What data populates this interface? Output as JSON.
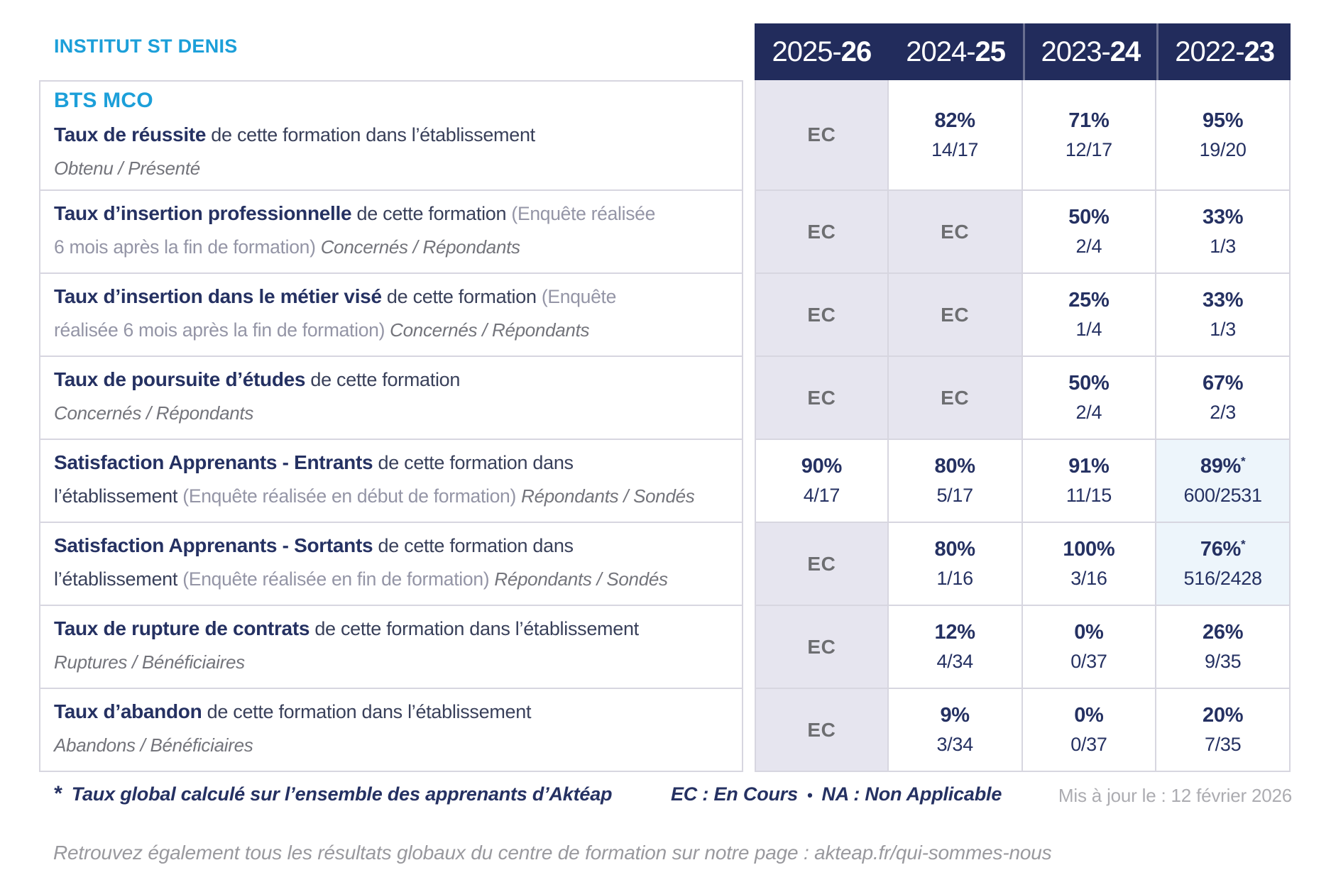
{
  "brand": "INSTITUT ST DENIS",
  "header": {
    "years": [
      {
        "pre": "2025-",
        "bold": "26",
        "divider": false
      },
      {
        "pre": "2024-",
        "bold": "25",
        "divider": false
      },
      {
        "pre": "2023-",
        "bold": "24",
        "divider": true
      },
      {
        "pre": "2022-",
        "bold": "23",
        "divider": true
      }
    ]
  },
  "table": {
    "rows": [
      {
        "lines": [
          [
            {
              "t": "BTS MCO",
              "s": "title"
            }
          ],
          [
            {
              "t": "Taux de réussite",
              "s": "bold"
            },
            {
              "t": " de cette formation dans l’établissement",
              "s": "normal"
            }
          ],
          [
            {
              "t": "Obtenu / Présenté",
              "s": "italic"
            }
          ]
        ],
        "values": [
          {
            "type": "ec",
            "text": "EC"
          },
          {
            "type": "pct",
            "pct": "82%",
            "frac": "14/17"
          },
          {
            "type": "pct",
            "pct": "71%",
            "frac": "12/17"
          },
          {
            "type": "pct",
            "pct": "95%",
            "frac": "19/20"
          }
        ]
      },
      {
        "lines": [
          [
            {
              "t": "Taux d’insertion professionnelle",
              "s": "bold"
            },
            {
              "t": " de cette formation ",
              "s": "normal"
            },
            {
              "t": "(Enquête réalisée",
              "s": "paren"
            }
          ],
          [
            {
              "t": "6 mois après la fin de formation) ",
              "s": "paren"
            },
            {
              "t": "Concernés / Répondants",
              "s": "italic"
            }
          ]
        ],
        "values": [
          {
            "type": "ec",
            "text": "EC"
          },
          {
            "type": "ec",
            "text": "EC"
          },
          {
            "type": "pct",
            "pct": "50%",
            "frac": "2/4"
          },
          {
            "type": "pct",
            "pct": "33%",
            "frac": "1/3"
          }
        ]
      },
      {
        "lines": [
          [
            {
              "t": "Taux d’insertion dans le métier visé",
              "s": "bold"
            },
            {
              "t": " de cette formation ",
              "s": "normal"
            },
            {
              "t": "(Enquête",
              "s": "paren"
            }
          ],
          [
            {
              "t": "réalisée 6 mois après la fin de formation) ",
              "s": "paren"
            },
            {
              "t": "Concernés / Répondants",
              "s": "italic"
            }
          ]
        ],
        "values": [
          {
            "type": "ec",
            "text": "EC"
          },
          {
            "type": "ec",
            "text": "EC"
          },
          {
            "type": "pct",
            "pct": "25%",
            "frac": "1/4"
          },
          {
            "type": "pct",
            "pct": "33%",
            "frac": "1/3"
          }
        ]
      },
      {
        "lines": [
          [
            {
              "t": "Taux de poursuite d’études",
              "s": "bold"
            },
            {
              "t": " de cette formation",
              "s": "normal"
            }
          ],
          [
            {
              "t": "Concernés / Répondants",
              "s": "italic"
            }
          ]
        ],
        "values": [
          {
            "type": "ec",
            "text": "EC"
          },
          {
            "type": "ec",
            "text": "EC"
          },
          {
            "type": "pct",
            "pct": "50%",
            "frac": "2/4"
          },
          {
            "type": "pct",
            "pct": "67%",
            "frac": "2/3"
          }
        ]
      },
      {
        "lines": [
          [
            {
              "t": "Satisfaction Apprenants - Entrants",
              "s": "bold"
            },
            {
              "t": " de cette formation dans",
              "s": "normal"
            }
          ],
          [
            {
              "t": "l’établissement ",
              "s": "normal"
            },
            {
              "t": "(Enquête réalisée en début de formation) ",
              "s": "paren"
            },
            {
              "t": "Répondants / Sondés",
              "s": "italic"
            }
          ]
        ],
        "values": [
          {
            "type": "pct",
            "pct": "90%",
            "frac": "4/17"
          },
          {
            "type": "pct",
            "pct": "80%",
            "frac": "5/17"
          },
          {
            "type": "pct",
            "pct": "91%",
            "frac": "11/15"
          },
          {
            "type": "pct",
            "pct": "89%",
            "frac": "600/2531",
            "star": "*",
            "highlight": true
          }
        ]
      },
      {
        "lines": [
          [
            {
              "t": "Satisfaction Apprenants - Sortants",
              "s": "bold"
            },
            {
              "t": " de cette formation dans",
              "s": "normal"
            }
          ],
          [
            {
              "t": "l’établissement ",
              "s": "normal"
            },
            {
              "t": "(Enquête réalisée en fin de formation) ",
              "s": "paren"
            },
            {
              "t": "Répondants / Sondés",
              "s": "italic"
            }
          ]
        ],
        "values": [
          {
            "type": "ec",
            "text": "EC"
          },
          {
            "type": "pct",
            "pct": "80%",
            "frac": "1/16"
          },
          {
            "type": "pct",
            "pct": "100%",
            "frac": "3/16"
          },
          {
            "type": "pct",
            "pct": "76%",
            "frac": "516/2428",
            "star": "*",
            "highlight": true
          }
        ]
      },
      {
        "lines": [
          [
            {
              "t": "Taux de rupture de contrats",
              "s": "bold"
            },
            {
              "t": " de cette formation dans l’établissement",
              "s": "normal"
            }
          ],
          [
            {
              "t": "Ruptures / Bénéficiaires",
              "s": "italic"
            }
          ]
        ],
        "values": [
          {
            "type": "ec",
            "text": "EC"
          },
          {
            "type": "pct",
            "pct": "12%",
            "frac": "4/34"
          },
          {
            "type": "pct",
            "pct": "0%",
            "frac": "0/37"
          },
          {
            "type": "pct",
            "pct": "26%",
            "frac": "9/35"
          }
        ]
      },
      {
        "lines": [
          [
            {
              "t": "Taux d’abandon",
              "s": "bold"
            },
            {
              "t": " de cette formation dans l’établissement",
              "s": "normal"
            }
          ],
          [
            {
              "t": "Abandons / Bénéficiaires",
              "s": "italic"
            }
          ]
        ],
        "values": [
          {
            "type": "ec",
            "text": "EC"
          },
          {
            "type": "pct",
            "pct": "9%",
            "frac": "3/34"
          },
          {
            "type": "pct",
            "pct": "0%",
            "frac": "0/37"
          },
          {
            "type": "pct",
            "pct": "20%",
            "frac": "7/35"
          }
        ]
      }
    ]
  },
  "footer": {
    "asterisk": "*",
    "note": "Taux global calculé sur l’ensemble des apprenants d’Aktéap",
    "legend_ec": "EC : En Cours",
    "legend_sep": "•",
    "legend_na": "NA : Non Applicable",
    "updated": "Mis à jour le : 12 février 2026"
  },
  "bottom_note": "Retrouvez également tous les résultats globaux du centre de formation sur notre page : akteap.fr/qui-sommes-nous",
  "colors": {
    "cyan": "#1C9FD9",
    "navy": "#222C5C",
    "navytext": "#253162",
    "labeldark": "#39405A",
    "parengray": "#9495A6",
    "subgray": "#73747B",
    "ecgray": "#6D6E71",
    "border": "#D7D6E0",
    "ecbg": "#E6E5EF",
    "hlbg": "#EDF5FB",
    "lightgray": "#ACACB1",
    "bottomgray": "#99999E"
  }
}
